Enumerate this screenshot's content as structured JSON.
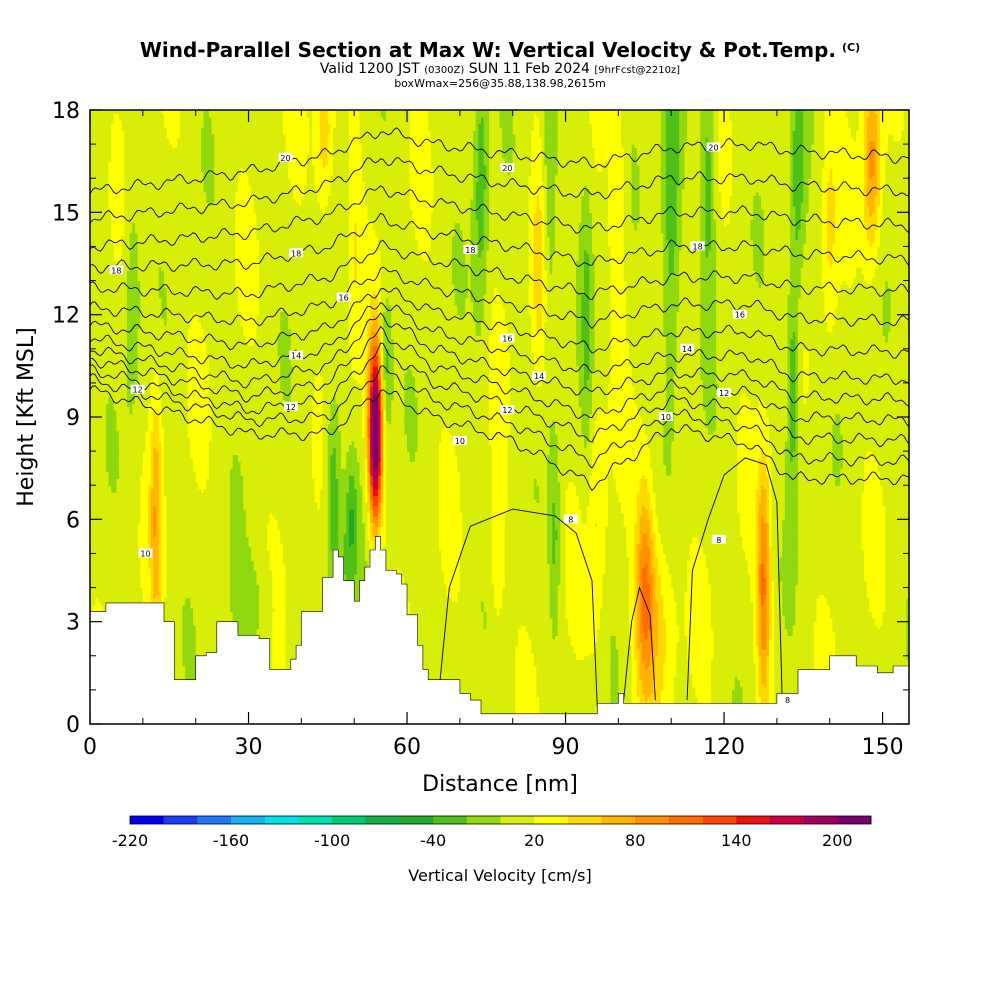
{
  "header": {
    "title": "Wind-Parallel Section at Max W: Vertical Velocity & Pot.Temp.",
    "copyright": "(C)",
    "valid_prefix": "Valid 1200 JST",
    "valid_utc": "(0300Z)",
    "valid_date": "SUN 11 Feb 2024",
    "valid_fcst": "[9hrFcst@2210z]",
    "box_line": "boxWmax=256@35.88,138.98,2615m"
  },
  "chart_data": {
    "type": "heatmap",
    "xlabel": "Distance [nm]",
    "ylabel": "Height [Kft MSL]",
    "xlim": [
      0,
      155
    ],
    "ylim": [
      0,
      18
    ],
    "x_ticks": [
      "0",
      "30",
      "60",
      "90",
      "120",
      "150"
    ],
    "y_ticks": [
      "0",
      "3",
      "6",
      "9",
      "12",
      "15",
      "18"
    ],
    "colorbar": {
      "title": "Vertical Velocity [cm/s]",
      "levels": [
        -220,
        -200,
        -180,
        -160,
        -140,
        -120,
        -100,
        -80,
        -60,
        -40,
        -20,
        0,
        20,
        40,
        60,
        80,
        100,
        120,
        140,
        160,
        180,
        200,
        220
      ],
      "colors": [
        "#0000ee",
        "#1a3cf5",
        "#1e78f5",
        "#14b0f0",
        "#00e0e8",
        "#00e0b0",
        "#00cc70",
        "#10b040",
        "#20a828",
        "#50c018",
        "#90d810",
        "#d8ee08",
        "#ffff00",
        "#ffd800",
        "#ffb400",
        "#ff9000",
        "#ff6c00",
        "#ff4400",
        "#ee1010",
        "#cc0040",
        "#a00060",
        "#780070"
      ],
      "tick_labels": [
        "-220",
        "-160",
        "-100",
        "-40",
        "20",
        "80",
        "140",
        "200"
      ]
    },
    "terrain_kft": [
      [
        0,
        3.3
      ],
      [
        3,
        3.55
      ],
      [
        12,
        3.55
      ],
      [
        14,
        3.0
      ],
      [
        16,
        1.3
      ],
      [
        18,
        1.3
      ],
      [
        20,
        2.0
      ],
      [
        22,
        2.1
      ],
      [
        24,
        3.0
      ],
      [
        26,
        3.0
      ],
      [
        28,
        2.6
      ],
      [
        30,
        2.6
      ],
      [
        32,
        2.5
      ],
      [
        34,
        1.6
      ],
      [
        37,
        1.6
      ],
      [
        38,
        1.9
      ],
      [
        39,
        2.3
      ],
      [
        40,
        3.3
      ],
      [
        42,
        3.3
      ],
      [
        44,
        4.3
      ],
      [
        46,
        5.1
      ],
      [
        47,
        4.9
      ],
      [
        48,
        4.2
      ],
      [
        49,
        4.2
      ],
      [
        50,
        3.6
      ],
      [
        51,
        4.2
      ],
      [
        52,
        4.6
      ],
      [
        53,
        5.1
      ],
      [
        54,
        5.5
      ],
      [
        55,
        5.1
      ],
      [
        56,
        4.5
      ],
      [
        58,
        4.4
      ],
      [
        59,
        4.1
      ],
      [
        60,
        3.2
      ],
      [
        62,
        2.3
      ],
      [
        63,
        1.6
      ],
      [
        64,
        1.3
      ],
      [
        66,
        1.3
      ],
      [
        68,
        1.3
      ],
      [
        70,
        0.9
      ],
      [
        72,
        0.7
      ],
      [
        74,
        0.3
      ],
      [
        82,
        0.3
      ],
      [
        86,
        0.3
      ],
      [
        92,
        0.3
      ],
      [
        94,
        0.3
      ],
      [
        96,
        0.6
      ],
      [
        100,
        0.9
      ],
      [
        101,
        0.6
      ],
      [
        104,
        0.6
      ],
      [
        106,
        0.6
      ],
      [
        114,
        0.6
      ],
      [
        128,
        0.6
      ],
      [
        130,
        0.9
      ],
      [
        134,
        1.6
      ],
      [
        140,
        2.0
      ],
      [
        145,
        1.7
      ],
      [
        149,
        1.5
      ],
      [
        152,
        1.7
      ],
      [
        155,
        1.7
      ]
    ],
    "updrafts": [
      {
        "x": 54,
        "z": 8.5,
        "sx": 0.9,
        "sz": 1.8,
        "w": 230
      },
      {
        "x": 12.5,
        "z": 6.2,
        "sx": 0.8,
        "sz": 2.6,
        "w": 60
      },
      {
        "x": 105,
        "z": 4.2,
        "sx": 1.2,
        "sz": 2.2,
        "w": 70
      },
      {
        "x": 107,
        "z": 3.0,
        "sx": 2.5,
        "sz": 2.0,
        "w": 45
      },
      {
        "x": 127.5,
        "z": 4.0,
        "sx": 0.9,
        "sz": 2.5,
        "w": 90
      },
      {
        "x": 148,
        "z": 16.5,
        "sx": 1.2,
        "sz": 2.0,
        "w": 75
      },
      {
        "x": 44.5,
        "z": 17.2,
        "sx": 1.2,
        "sz": 1.6,
        "w": 45
      },
      {
        "x": 77,
        "z": 5.0,
        "sx": 1.0,
        "sz": 1.8,
        "w": 30
      },
      {
        "x": 85,
        "z": 13.0,
        "sx": 1.1,
        "sz": 2.5,
        "w": 35
      },
      {
        "x": 100,
        "z": 15.0,
        "sx": 1.0,
        "sz": 2.5,
        "w": 30
      },
      {
        "x": 140,
        "z": 14.5,
        "sx": 1.0,
        "sz": 2.5,
        "w": 30
      },
      {
        "x": 50,
        "z": 14.0,
        "sx": 1.0,
        "sz": 2.5,
        "w": 28
      },
      {
        "x": 96,
        "z": 6.0,
        "sx": 1.2,
        "sz": 2.5,
        "w": 30
      }
    ],
    "downdrafts": [
      {
        "x": 46,
        "z": 7.0,
        "sx": 1.0,
        "sz": 1.8,
        "w": -50
      },
      {
        "x": 49.5,
        "z": 6.2,
        "sx": 0.8,
        "sz": 1.2,
        "w": -40
      },
      {
        "x": 56,
        "z": 10.5,
        "sx": 0.8,
        "sz": 1.5,
        "w": -45
      },
      {
        "x": 74,
        "z": 16.0,
        "sx": 1.0,
        "sz": 3.0,
        "w": -45
      },
      {
        "x": 87,
        "z": 16.0,
        "sx": 1.0,
        "sz": 3.5,
        "w": -40
      },
      {
        "x": 110,
        "z": 15.5,
        "sx": 1.3,
        "sz": 4.0,
        "w": -55
      },
      {
        "x": 117,
        "z": 16.0,
        "sx": 1.0,
        "sz": 2.5,
        "w": -45
      },
      {
        "x": 133,
        "z": 10.0,
        "sx": 0.8,
        "sz": 2.5,
        "w": -50
      },
      {
        "x": 134,
        "z": 16.0,
        "sx": 1.0,
        "sz": 2.5,
        "w": -40
      },
      {
        "x": 8,
        "z": 12.5,
        "sx": 1.0,
        "sz": 2.5,
        "w": -30
      },
      {
        "x": 88,
        "z": 5.5,
        "sx": 0.7,
        "sz": 2.0,
        "w": -35
      },
      {
        "x": 48,
        "z": 4.5,
        "sx": 2.0,
        "sz": 1.2,
        "w": -25
      },
      {
        "x": 30,
        "z": 3.5,
        "sx": 3.0,
        "sz": 1.0,
        "w": -20
      },
      {
        "x": 94,
        "z": 12.0,
        "sx": 0.8,
        "sz": 3.0,
        "w": -30
      }
    ],
    "theta_base": [
      [
        0,
        0,
        9.8
      ],
      [
        0,
        30,
        8.5
      ],
      [
        0,
        45,
        8.5
      ],
      [
        0,
        55,
        9.8
      ],
      [
        0,
        65,
        9.0
      ],
      [
        0,
        80,
        8.3
      ],
      [
        0,
        95,
        7.0
      ],
      [
        0,
        110,
        8.7
      ],
      [
        0,
        125,
        8.2
      ],
      [
        0,
        133,
        7.2
      ],
      [
        0,
        155,
        7.2
      ],
      [
        1,
        0,
        10.1
      ],
      [
        1,
        30,
        8.9
      ],
      [
        1,
        45,
        9.0
      ],
      [
        1,
        55,
        10.4
      ],
      [
        1,
        65,
        9.5
      ],
      [
        1,
        80,
        8.8
      ],
      [
        1,
        95,
        7.7
      ],
      [
        1,
        110,
        9.1
      ],
      [
        1,
        125,
        8.7
      ],
      [
        1,
        133,
        7.8
      ],
      [
        1,
        155,
        7.7
      ],
      [
        2,
        0,
        10.4
      ],
      [
        2,
        30,
        9.2
      ],
      [
        2,
        45,
        9.5
      ],
      [
        2,
        55,
        11.0
      ],
      [
        2,
        65,
        10.0
      ],
      [
        2,
        80,
        9.3
      ],
      [
        2,
        95,
        8.4
      ],
      [
        2,
        110,
        9.5
      ],
      [
        2,
        125,
        9.2
      ],
      [
        2,
        133,
        8.4
      ],
      [
        2,
        155,
        8.3
      ],
      [
        3,
        0,
        10.7
      ],
      [
        3,
        30,
        9.6
      ],
      [
        3,
        45,
        10.0
      ],
      [
        3,
        55,
        11.5
      ],
      [
        3,
        65,
        10.5
      ],
      [
        3,
        80,
        9.8
      ],
      [
        3,
        95,
        9.0
      ],
      [
        3,
        110,
        9.9
      ],
      [
        3,
        125,
        9.7
      ],
      [
        3,
        133,
        9.0
      ],
      [
        3,
        155,
        8.9
      ],
      [
        4,
        0,
        11.0
      ],
      [
        4,
        30,
        10.0
      ],
      [
        4,
        45,
        10.5
      ],
      [
        4,
        55,
        12.0
      ],
      [
        4,
        65,
        11.0
      ],
      [
        4,
        80,
        10.3
      ],
      [
        4,
        95,
        9.7
      ],
      [
        4,
        110,
        10.3
      ],
      [
        4,
        125,
        10.2
      ],
      [
        4,
        133,
        9.6
      ],
      [
        4,
        155,
        9.5
      ],
      [
        5,
        0,
        11.3
      ],
      [
        5,
        30,
        10.5
      ],
      [
        5,
        45,
        11.0
      ],
      [
        5,
        55,
        12.4
      ],
      [
        5,
        65,
        11.5
      ],
      [
        5,
        80,
        10.9
      ],
      [
        5,
        95,
        10.3
      ],
      [
        5,
        110,
        10.8
      ],
      [
        5,
        125,
        10.8
      ],
      [
        5,
        133,
        10.2
      ],
      [
        5,
        155,
        10.1
      ],
      [
        6,
        0,
        11.7
      ],
      [
        6,
        30,
        11.1
      ],
      [
        6,
        45,
        11.6
      ],
      [
        6,
        55,
        12.8
      ],
      [
        6,
        65,
        12.1
      ],
      [
        6,
        80,
        11.6
      ],
      [
        6,
        95,
        11.0
      ],
      [
        6,
        110,
        11.5
      ],
      [
        6,
        125,
        11.5
      ],
      [
        6,
        133,
        11.0
      ],
      [
        6,
        155,
        10.9
      ],
      [
        7,
        0,
        12.2
      ],
      [
        7,
        30,
        11.8
      ],
      [
        7,
        45,
        12.3
      ],
      [
        7,
        55,
        13.3
      ],
      [
        7,
        65,
        12.8
      ],
      [
        7,
        80,
        12.3
      ],
      [
        7,
        95,
        11.8
      ],
      [
        7,
        110,
        12.3
      ],
      [
        7,
        125,
        12.3
      ],
      [
        7,
        133,
        11.9
      ],
      [
        7,
        155,
        11.8
      ],
      [
        8,
        0,
        12.8
      ],
      [
        8,
        30,
        12.6
      ],
      [
        8,
        45,
        13.1
      ],
      [
        8,
        55,
        14.0
      ],
      [
        8,
        65,
        13.6
      ],
      [
        8,
        80,
        13.1
      ],
      [
        8,
        95,
        12.6
      ],
      [
        8,
        110,
        13.1
      ],
      [
        8,
        125,
        13.1
      ],
      [
        8,
        133,
        12.8
      ],
      [
        8,
        155,
        12.7
      ],
      [
        9,
        0,
        13.4
      ],
      [
        9,
        30,
        13.5
      ],
      [
        9,
        45,
        14.0
      ],
      [
        9,
        55,
        14.8
      ],
      [
        9,
        65,
        14.4
      ],
      [
        9,
        80,
        14.0
      ],
      [
        9,
        95,
        13.5
      ],
      [
        9,
        110,
        14.0
      ],
      [
        9,
        125,
        14.0
      ],
      [
        9,
        133,
        13.8
      ],
      [
        9,
        155,
        13.6
      ],
      [
        10,
        0,
        14.0
      ],
      [
        10,
        30,
        14.4
      ],
      [
        10,
        45,
        14.9
      ],
      [
        10,
        55,
        15.7
      ],
      [
        10,
        65,
        15.3
      ],
      [
        10,
        80,
        14.9
      ],
      [
        10,
        95,
        14.5
      ],
      [
        10,
        110,
        15.0
      ],
      [
        10,
        125,
        15.0
      ],
      [
        10,
        133,
        14.8
      ],
      [
        10,
        155,
        14.6
      ],
      [
        11,
        0,
        14.8
      ],
      [
        11,
        30,
        15.3
      ],
      [
        11,
        45,
        15.8
      ],
      [
        11,
        55,
        16.6
      ],
      [
        11,
        65,
        16.2
      ],
      [
        11,
        80,
        15.8
      ],
      [
        11,
        95,
        15.5
      ],
      [
        11,
        110,
        16.0
      ],
      [
        11,
        125,
        16.0
      ],
      [
        11,
        133,
        15.8
      ],
      [
        11,
        155,
        15.6
      ],
      [
        12,
        0,
        15.6
      ],
      [
        12,
        30,
        16.2
      ],
      [
        12,
        45,
        16.7
      ],
      [
        12,
        55,
        17.4
      ],
      [
        12,
        65,
        17.0
      ],
      [
        12,
        80,
        16.7
      ],
      [
        12,
        95,
        16.4
      ],
      [
        12,
        110,
        16.9
      ],
      [
        12,
        125,
        17.0
      ],
      [
        12,
        133,
        16.8
      ],
      [
        12,
        155,
        16.6
      ]
    ],
    "contour_labels": [
      {
        "text": "18",
        "x": 5,
        "z": 13.3
      },
      {
        "text": "12",
        "x": 9,
        "z": 9.8
      },
      {
        "text": "10",
        "x": 10.5,
        "z": 5.0
      },
      {
        "text": "20",
        "x": 37,
        "z": 16.6
      },
      {
        "text": "18",
        "x": 39,
        "z": 13.8
      },
      {
        "text": "16",
        "x": 48,
        "z": 12.5
      },
      {
        "text": "14",
        "x": 39,
        "z": 10.8
      },
      {
        "text": "12",
        "x": 38,
        "z": 9.3
      },
      {
        "text": "18",
        "x": 72,
        "z": 13.9
      },
      {
        "text": "20",
        "x": 79,
        "z": 16.3
      },
      {
        "text": "16",
        "x": 79,
        "z": 11.3
      },
      {
        "text": "14",
        "x": 85,
        "z": 10.2
      },
      {
        "text": "12",
        "x": 79,
        "z": 9.2
      },
      {
        "text": "10",
        "x": 70,
        "z": 8.3
      },
      {
        "text": "8",
        "x": 91,
        "z": 6.0
      },
      {
        "text": "20",
        "x": 118,
        "z": 16.9
      },
      {
        "text": "18",
        "x": 115,
        "z": 14.0
      },
      {
        "text": "16",
        "x": 123,
        "z": 12.0
      },
      {
        "text": "14",
        "x": 113,
        "z": 11.0
      },
      {
        "text": "12",
        "x": 120,
        "z": 9.7
      },
      {
        "text": "10",
        "x": 109,
        "z": 9.0
      },
      {
        "text": "8",
        "x": 119,
        "z": 5.4
      },
      {
        "text": "8",
        "x": 132,
        "z": 0.7
      }
    ]
  }
}
